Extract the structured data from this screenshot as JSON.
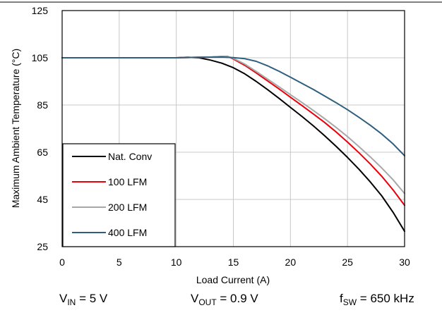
{
  "chart_data": {
    "type": "line",
    "title": "",
    "xlabel": "Load Current (A)",
    "ylabel": "Maximum Ambient Temperature (°C)",
    "xlim": [
      0,
      30
    ],
    "ylim": [
      25,
      125
    ],
    "xticks": [
      "0",
      "5",
      "10",
      "15",
      "20",
      "25",
      "30"
    ],
    "yticks": [
      "25",
      "45",
      "65",
      "85",
      "105",
      "125"
    ],
    "grid": true,
    "legend": "bottom-left",
    "series": [
      {
        "name": "Nat. Conv",
        "color": "#000000",
        "x": [
          0,
          5,
          10,
          11,
          12,
          13,
          14,
          15,
          16,
          17,
          18,
          19,
          20,
          21,
          22,
          23,
          24,
          25,
          26,
          27,
          28,
          29,
          30
        ],
        "y": [
          105,
          105,
          105,
          105.2,
          105,
          104,
          102.7,
          100.8,
          98.2,
          95,
          91.5,
          87.8,
          84,
          80.2,
          76.2,
          72,
          67.5,
          62.8,
          57.8,
          52.4,
          46.5,
          39.5,
          31.5
        ]
      },
      {
        "name": "100 LFM",
        "color": "#e8000b",
        "x": [
          0,
          5,
          10,
          12,
          13,
          14,
          14.5,
          15,
          16,
          17,
          18,
          19,
          20,
          21,
          22,
          23,
          24,
          25,
          26,
          27,
          28,
          29,
          30
        ],
        "y": [
          105,
          105,
          105,
          105.2,
          105.3,
          105.6,
          105.6,
          104.5,
          101.8,
          98.6,
          95.2,
          91.8,
          88.3,
          84.8,
          81.2,
          77.6,
          73.6,
          69.3,
          64.8,
          60,
          54.8,
          49,
          42.5
        ]
      },
      {
        "name": "200 LFM",
        "color": "#a8a8a8",
        "x": [
          0,
          5,
          10,
          12,
          13,
          14,
          14.5,
          15,
          16,
          17,
          18,
          19,
          20,
          21,
          22,
          23,
          24,
          25,
          26,
          27,
          28,
          29,
          30
        ],
        "y": [
          105,
          105,
          105,
          105.2,
          105.3,
          105.5,
          105.5,
          104.8,
          102.3,
          99.2,
          96,
          92.7,
          89.4,
          86.1,
          82.7,
          79.2,
          75.5,
          71.6,
          67.4,
          63,
          58.3,
          53.3,
          47.5
        ]
      },
      {
        "name": "400 LFM",
        "color": "#2e5f7d",
        "x": [
          0,
          5,
          10,
          12,
          14,
          15,
          16,
          17,
          18,
          19,
          20,
          21,
          22,
          23,
          24,
          25,
          26,
          27,
          28,
          29,
          30
        ],
        "y": [
          105,
          105,
          105,
          105.2,
          105.3,
          105.1,
          104.6,
          103.5,
          101.6,
          99.3,
          96.8,
          94.2,
          91.6,
          88.8,
          86,
          83,
          79.8,
          76.4,
          72.7,
          68.5,
          63.5
        ]
      }
    ]
  },
  "conditions": {
    "vin": {
      "prefix": "V",
      "sub": "IN",
      "suffix": " = 5 V"
    },
    "vout": {
      "prefix": "V",
      "sub": "OUT",
      "suffix": " = 0.9 V"
    },
    "fsw": {
      "prefix": "f",
      "sub": "SW",
      "suffix": " = 650 kHz"
    }
  }
}
